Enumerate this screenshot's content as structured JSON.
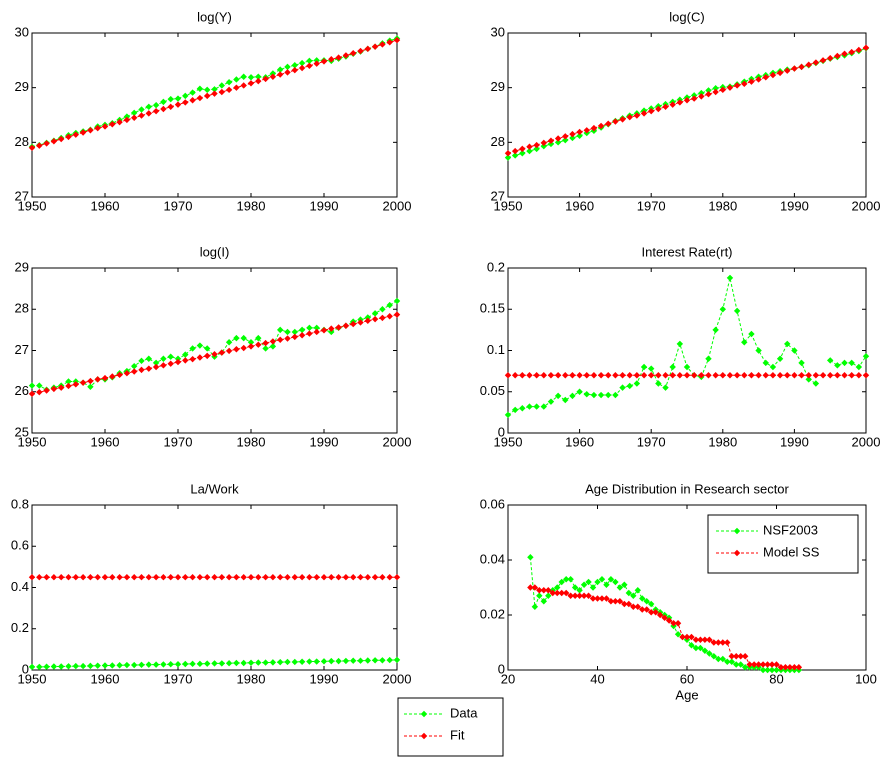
{
  "chart_data": [
    {
      "type": "line",
      "title": "log(Y)",
      "x": [
        1950,
        1951,
        1952,
        1953,
        1954,
        1955,
        1956,
        1957,
        1958,
        1959,
        1960,
        1961,
        1962,
        1963,
        1964,
        1965,
        1966,
        1967,
        1968,
        1969,
        1970,
        1971,
        1972,
        1973,
        1974,
        1975,
        1976,
        1977,
        1978,
        1979,
        1980,
        1981,
        1982,
        1983,
        1984,
        1985,
        1986,
        1987,
        1988,
        1989,
        1990,
        1991,
        1992,
        1993,
        1994,
        1995,
        1996,
        1997,
        1998,
        1999,
        2000
      ],
      "xlim": [
        1950,
        2000
      ],
      "xticks": [
        1950,
        1960,
        1970,
        1980,
        1990,
        2000
      ],
      "ylim": [
        27,
        30
      ],
      "yticks": [
        27,
        28,
        29,
        30
      ],
      "series": [
        {
          "color": "#00ff00",
          "values": [
            27.92,
            27.95,
            27.99,
            28.03,
            28.08,
            28.13,
            28.17,
            28.2,
            28.23,
            28.29,
            28.32,
            28.35,
            28.41,
            28.47,
            28.54,
            28.6,
            28.65,
            28.68,
            28.74,
            28.79,
            28.8,
            28.85,
            28.91,
            28.98,
            28.96,
            28.97,
            29.04,
            29.1,
            29.15,
            29.2,
            29.19,
            29.2,
            29.19,
            29.26,
            29.33,
            29.38,
            29.41,
            29.45,
            29.49,
            29.5,
            29.5,
            29.49,
            29.53,
            29.57,
            29.62,
            29.66,
            29.71,
            29.75,
            29.81,
            29.86,
            29.9
          ]
        },
        {
          "color": "#ff0000",
          "values": [
            27.9,
            27.94,
            27.98,
            28.02,
            28.06,
            28.1,
            28.14,
            28.18,
            28.22,
            28.26,
            28.29,
            28.33,
            28.37,
            28.41,
            28.45,
            28.49,
            28.53,
            28.57,
            28.61,
            28.65,
            28.69,
            28.73,
            28.77,
            28.81,
            28.85,
            28.89,
            28.92,
            28.96,
            29.0,
            29.04,
            29.08,
            29.12,
            29.16,
            29.2,
            29.24,
            29.28,
            29.32,
            29.36,
            29.4,
            29.44,
            29.48,
            29.52,
            29.55,
            29.59,
            29.63,
            29.67,
            29.71,
            29.75,
            29.79,
            29.83,
            29.87
          ]
        }
      ]
    },
    {
      "type": "line",
      "title": "log(C)",
      "x": [
        1950,
        1951,
        1952,
        1953,
        1954,
        1955,
        1956,
        1957,
        1958,
        1959,
        1960,
        1961,
        1962,
        1963,
        1964,
        1965,
        1966,
        1967,
        1968,
        1969,
        1970,
        1971,
        1972,
        1973,
        1974,
        1975,
        1976,
        1977,
        1978,
        1979,
        1980,
        1981,
        1982,
        1983,
        1984,
        1985,
        1986,
        1987,
        1988,
        1989,
        1990,
        1991,
        1992,
        1993,
        1994,
        1995,
        1996,
        1997,
        1998,
        1999,
        2000
      ],
      "xlim": [
        1950,
        2000
      ],
      "xticks": [
        1950,
        1960,
        1970,
        1980,
        1990,
        2000
      ],
      "ylim": [
        27,
        30
      ],
      "yticks": [
        27,
        28,
        29,
        30
      ],
      "series": [
        {
          "color": "#00ff00",
          "values": [
            27.72,
            27.76,
            27.8,
            27.84,
            27.88,
            27.93,
            27.97,
            28.0,
            28.04,
            28.08,
            28.12,
            28.17,
            28.21,
            28.27,
            28.33,
            28.39,
            28.44,
            28.49,
            28.53,
            28.58,
            28.62,
            28.66,
            28.7,
            28.74,
            28.78,
            28.82,
            28.86,
            28.9,
            28.95,
            28.99,
            29.01,
            29.02,
            29.06,
            29.11,
            29.16,
            29.2,
            29.23,
            29.27,
            29.3,
            29.33,
            29.35,
            29.38,
            29.41,
            29.45,
            29.49,
            29.53,
            29.56,
            29.59,
            29.63,
            29.67,
            29.72
          ]
        },
        {
          "color": "#ff0000",
          "values": [
            27.8,
            27.84,
            27.88,
            27.92,
            27.95,
            27.99,
            28.03,
            28.07,
            28.11,
            28.15,
            28.19,
            28.22,
            28.26,
            28.3,
            28.34,
            28.38,
            28.42,
            28.46,
            28.49,
            28.53,
            28.57,
            28.61,
            28.65,
            28.69,
            28.73,
            28.77,
            28.8,
            28.84,
            28.88,
            28.92,
            28.96,
            29.0,
            29.04,
            29.07,
            29.11,
            29.15,
            29.19,
            29.23,
            29.27,
            29.31,
            29.35,
            29.38,
            29.42,
            29.46,
            29.5,
            29.54,
            29.58,
            29.62,
            29.65,
            29.69,
            29.73
          ]
        }
      ]
    },
    {
      "type": "line",
      "title": "log(I)",
      "x": [
        1950,
        1951,
        1952,
        1953,
        1954,
        1955,
        1956,
        1957,
        1958,
        1959,
        1960,
        1961,
        1962,
        1963,
        1964,
        1965,
        1966,
        1967,
        1968,
        1969,
        1970,
        1971,
        1972,
        1973,
        1974,
        1975,
        1976,
        1977,
        1978,
        1979,
        1980,
        1981,
        1982,
        1983,
        1984,
        1985,
        1986,
        1987,
        1988,
        1989,
        1990,
        1991,
        1992,
        1993,
        1994,
        1995,
        1996,
        1997,
        1998,
        1999,
        2000
      ],
      "xlim": [
        1950,
        2000
      ],
      "xticks": [
        1950,
        1960,
        1970,
        1980,
        1990,
        2000
      ],
      "ylim": [
        25,
        29
      ],
      "yticks": [
        25,
        26,
        27,
        28,
        29
      ],
      "series": [
        {
          "color": "#00ff00",
          "values": [
            26.15,
            26.15,
            26.05,
            26.1,
            26.15,
            26.25,
            26.25,
            26.22,
            26.12,
            26.3,
            26.3,
            26.35,
            26.45,
            26.5,
            26.62,
            26.75,
            26.8,
            26.7,
            26.8,
            26.85,
            26.8,
            26.9,
            27.05,
            27.12,
            27.05,
            26.85,
            26.95,
            27.2,
            27.3,
            27.3,
            27.2,
            27.3,
            27.05,
            27.1,
            27.5,
            27.45,
            27.45,
            27.5,
            27.55,
            27.55,
            27.5,
            27.45,
            27.55,
            27.6,
            27.7,
            27.75,
            27.8,
            27.9,
            28.0,
            28.1,
            28.2
          ]
        },
        {
          "color": "#ff0000",
          "values": [
            25.95,
            25.99,
            26.03,
            26.07,
            26.1,
            26.14,
            26.18,
            26.22,
            26.26,
            26.3,
            26.33,
            26.37,
            26.41,
            26.45,
            26.49,
            26.53,
            26.56,
            26.6,
            26.64,
            26.68,
            26.72,
            26.76,
            26.79,
            26.83,
            26.87,
            26.91,
            26.95,
            26.99,
            27.03,
            27.06,
            27.1,
            27.14,
            27.18,
            27.22,
            27.26,
            27.29,
            27.33,
            27.37,
            27.41,
            27.45,
            27.49,
            27.53,
            27.56,
            27.6,
            27.64,
            27.68,
            27.72,
            27.76,
            27.79,
            27.83,
            27.87
          ]
        }
      ]
    },
    {
      "type": "line",
      "title": "Interest Rate(rt)",
      "x": [
        1950,
        1951,
        1952,
        1953,
        1954,
        1955,
        1956,
        1957,
        1958,
        1959,
        1960,
        1961,
        1962,
        1963,
        1964,
        1965,
        1966,
        1967,
        1968,
        1969,
        1970,
        1971,
        1972,
        1973,
        1974,
        1975,
        1976,
        1977,
        1978,
        1979,
        1980,
        1981,
        1982,
        1983,
        1984,
        1985,
        1986,
        1987,
        1988,
        1989,
        1990,
        1991,
        1992,
        1993,
        1994,
        1995,
        1996,
        1997,
        1998,
        1999,
        2000
      ],
      "xlim": [
        1950,
        2000
      ],
      "xticks": [
        1950,
        1960,
        1970,
        1980,
        1990,
        2000
      ],
      "ylim": [
        0,
        0.2
      ],
      "yticks": [
        0,
        0.05,
        0.1,
        0.15,
        0.2
      ],
      "series": [
        {
          "color": "#00ff00",
          "values": [
            0.022,
            0.028,
            0.03,
            0.032,
            0.032,
            0.032,
            0.038,
            0.045,
            0.04,
            0.045,
            0.05,
            0.047,
            0.046,
            0.046,
            0.046,
            0.046,
            0.055,
            0.057,
            0.06,
            0.08,
            0.078,
            0.06,
            0.055,
            0.08,
            0.108,
            0.08,
            0.07,
            0.068,
            0.09,
            0.125,
            0.15,
            0.188,
            0.148,
            0.11,
            0.12,
            0.1,
            0.085,
            0.08,
            0.09,
            0.108,
            0.1,
            0.085,
            0.065,
            0.06,
            null,
            0.088,
            0.082,
            0.085,
            0.085,
            0.08,
            0.093
          ]
        },
        {
          "color": "#ff0000",
          "values": [
            0.07,
            0.07,
            0.07,
            0.07,
            0.07,
            0.07,
            0.07,
            0.07,
            0.07,
            0.07,
            0.07,
            0.07,
            0.07,
            0.07,
            0.07,
            0.07,
            0.07,
            0.07,
            0.07,
            0.07,
            0.07,
            0.07,
            0.07,
            0.07,
            0.07,
            0.07,
            0.07,
            0.07,
            0.07,
            0.07,
            0.07,
            0.07,
            0.07,
            0.07,
            0.07,
            0.07,
            0.07,
            0.07,
            0.07,
            0.07,
            0.07,
            0.07,
            0.07,
            0.07,
            0.07,
            0.07,
            0.07,
            0.07,
            0.07,
            0.07,
            0.07
          ]
        }
      ]
    },
    {
      "type": "line",
      "title": "La/Work",
      "x": [
        1950,
        1951,
        1952,
        1953,
        1954,
        1955,
        1956,
        1957,
        1958,
        1959,
        1960,
        1961,
        1962,
        1963,
        1964,
        1965,
        1966,
        1967,
        1968,
        1969,
        1970,
        1971,
        1972,
        1973,
        1974,
        1975,
        1976,
        1977,
        1978,
        1979,
        1980,
        1981,
        1982,
        1983,
        1984,
        1985,
        1986,
        1987,
        1988,
        1989,
        1990,
        1991,
        1992,
        1993,
        1994,
        1995,
        1996,
        1997,
        1998,
        1999,
        2000
      ],
      "xlim": [
        1950,
        2000
      ],
      "xticks": [
        1950,
        1960,
        1970,
        1980,
        1990,
        2000
      ],
      "ylim": [
        0,
        0.8
      ],
      "yticks": [
        0,
        0.2,
        0.4,
        0.6,
        0.8
      ],
      "series": [
        {
          "color": "#00ff00",
          "values": [
            0.015,
            0.015,
            0.016,
            0.017,
            0.017,
            0.018,
            0.019,
            0.019,
            0.02,
            0.021,
            0.022,
            0.022,
            0.023,
            0.024,
            0.024,
            0.025,
            0.026,
            0.026,
            0.027,
            0.028,
            0.028,
            0.029,
            0.03,
            0.03,
            0.031,
            0.032,
            0.032,
            0.033,
            0.034,
            0.034,
            0.035,
            0.036,
            0.036,
            0.037,
            0.038,
            0.039,
            0.039,
            0.04,
            0.041,
            0.041,
            0.042,
            0.043,
            0.043,
            0.044,
            0.045,
            0.045,
            0.046,
            0.047,
            0.047,
            0.048,
            0.049
          ]
        },
        {
          "color": "#ff0000",
          "values": [
            0.45,
            0.45,
            0.45,
            0.45,
            0.45,
            0.45,
            0.45,
            0.45,
            0.45,
            0.45,
            0.45,
            0.45,
            0.45,
            0.45,
            0.45,
            0.45,
            0.45,
            0.45,
            0.45,
            0.45,
            0.45,
            0.45,
            0.45,
            0.45,
            0.45,
            0.45,
            0.45,
            0.45,
            0.45,
            0.45,
            0.45,
            0.45,
            0.45,
            0.45,
            0.45,
            0.45,
            0.45,
            0.45,
            0.45,
            0.45,
            0.45,
            0.45,
            0.45,
            0.45,
            0.45,
            0.45,
            0.45,
            0.45,
            0.45,
            0.45,
            0.45
          ]
        }
      ]
    },
    {
      "type": "line",
      "title": "Age Distribution in Research sector",
      "xlabel": "Age",
      "legend": "northeast",
      "x": [
        25,
        26,
        27,
        28,
        29,
        30,
        31,
        32,
        33,
        34,
        35,
        36,
        37,
        38,
        39,
        40,
        41,
        42,
        43,
        44,
        45,
        46,
        47,
        48,
        49,
        50,
        51,
        52,
        53,
        54,
        55,
        56,
        57,
        58,
        59,
        60,
        61,
        62,
        63,
        64,
        65,
        66,
        67,
        68,
        69,
        70,
        71,
        72,
        73,
        74,
        75,
        76,
        77,
        78,
        79,
        80,
        81,
        82,
        83,
        84,
        85
      ],
      "xlim": [
        20,
        100
      ],
      "xticks": [
        20,
        40,
        60,
        80,
        100
      ],
      "ylim": [
        0,
        0.06
      ],
      "yticks": [
        0,
        0.02,
        0.04,
        0.06
      ],
      "series": [
        {
          "name": "NSF2003",
          "color": "#00ff00",
          "values": [
            0.041,
            0.023,
            0.027,
            0.025,
            0.027,
            0.029,
            0.03,
            0.032,
            0.033,
            0.033,
            0.03,
            0.029,
            0.031,
            0.032,
            0.03,
            0.032,
            0.033,
            0.031,
            0.033,
            0.032,
            0.03,
            0.031,
            0.028,
            0.027,
            0.029,
            0.026,
            0.025,
            0.024,
            0.022,
            0.021,
            0.02,
            0.019,
            0.016,
            0.013,
            0.012,
            0.011,
            0.009,
            0.008,
            0.008,
            0.007,
            0.006,
            0.005,
            0.004,
            0.004,
            0.003,
            0.003,
            0.002,
            0.002,
            0.001,
            0.001,
            0.001,
            0.001,
            0,
            0,
            0,
            0,
            0,
            0,
            0,
            0,
            0
          ]
        },
        {
          "name": "Model SS",
          "color": "#ff0000",
          "values": [
            0.03,
            0.03,
            0.029,
            0.029,
            0.029,
            0.028,
            0.028,
            0.028,
            0.028,
            0.027,
            0.027,
            0.027,
            0.027,
            0.027,
            0.026,
            0.026,
            0.026,
            0.026,
            0.025,
            0.025,
            0.025,
            0.024,
            0.024,
            0.023,
            0.023,
            0.022,
            0.022,
            0.021,
            0.021,
            0.02,
            0.019,
            0.018,
            0.017,
            0.017,
            0.012,
            0.012,
            0.012,
            0.011,
            0.011,
            0.011,
            0.011,
            0.01,
            0.01,
            0.01,
            0.01,
            0.005,
            0.005,
            0.005,
            0.005,
            0.002,
            0.002,
            0.002,
            0.002,
            0.002,
            0.002,
            0.002,
            0.001,
            0.001,
            0.001,
            0.001,
            0.001
          ]
        }
      ]
    }
  ],
  "figure_legend": {
    "entries": [
      {
        "name": "Data",
        "color": "#00ff00"
      },
      {
        "name": "Fit",
        "color": "#ff0000"
      }
    ]
  }
}
